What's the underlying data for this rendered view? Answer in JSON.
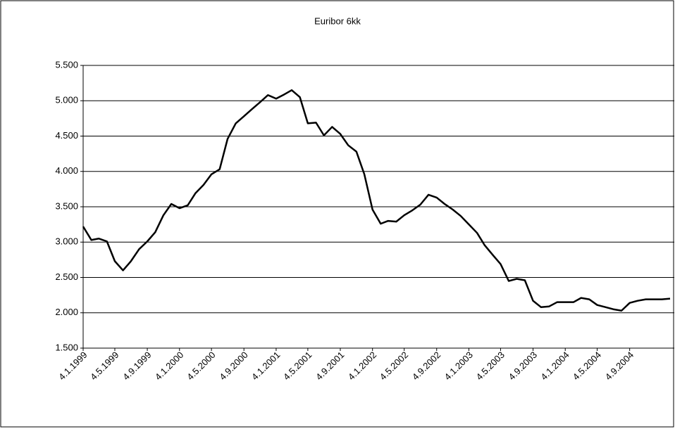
{
  "chart_data": {
    "type": "line",
    "title": "Euribor 6kk",
    "x": [
      "4.1.1999",
      "4.2.1999",
      "4.3.1999",
      "4.4.1999",
      "4.5.1999",
      "4.6.1999",
      "4.7.1999",
      "4.8.1999",
      "4.9.1999",
      "4.10.1999",
      "4.11.1999",
      "4.12.1999",
      "4.1.2000",
      "4.2.2000",
      "4.3.2000",
      "4.4.2000",
      "4.5.2000",
      "4.6.2000",
      "4.7.2000",
      "4.8.2000",
      "4.9.2000",
      "4.10.2000",
      "4.11.2000",
      "4.12.2000",
      "4.1.2001",
      "4.2.2001",
      "4.3.2001",
      "4.4.2001",
      "4.5.2001",
      "4.6.2001",
      "4.7.2001",
      "4.8.2001",
      "4.9.2001",
      "4.10.2001",
      "4.11.2001",
      "4.12.2001",
      "4.1.2002",
      "4.2.2002",
      "4.3.2002",
      "4.4.2002",
      "4.5.2002",
      "4.6.2002",
      "4.7.2002",
      "4.8.2002",
      "4.9.2002",
      "4.10.2002",
      "4.11.2002",
      "4.12.2002",
      "4.1.2003",
      "4.2.2003",
      "4.3.2003",
      "4.4.2003",
      "4.5.2003",
      "4.6.2003",
      "4.7.2003",
      "4.8.2003",
      "4.9.2003",
      "4.10.2003",
      "4.11.2003",
      "4.12.2003",
      "4.1.2004",
      "4.2.2004",
      "4.3.2004",
      "4.4.2004",
      "4.5.2004",
      "4.6.2004",
      "4.7.2004",
      "4.8.2004",
      "4.9.2004",
      "4.10.2004",
      "4.11.2004",
      "4.12.2004",
      "4.1.2005",
      "4.2.2005"
    ],
    "series": [
      {
        "name": "Euribor 6kk",
        "color": "#000000",
        "values": [
          3.22,
          3.03,
          3.05,
          3.01,
          2.73,
          2.6,
          2.73,
          2.9,
          3.01,
          3.14,
          3.38,
          3.54,
          3.48,
          3.52,
          3.69,
          3.81,
          3.96,
          4.03,
          4.46,
          4.68,
          4.78,
          4.88,
          4.98,
          5.08,
          5.03,
          5.09,
          5.15,
          5.05,
          4.68,
          4.69,
          4.51,
          4.63,
          4.53,
          4.37,
          4.28,
          3.96,
          3.46,
          3.26,
          3.3,
          3.29,
          3.38,
          3.45,
          3.53,
          3.67,
          3.63,
          3.54,
          3.46,
          3.37,
          3.25,
          3.13,
          2.96,
          2.82,
          2.69,
          2.45,
          2.48,
          2.46,
          2.17,
          2.08,
          2.09,
          2.15,
          2.15,
          2.15,
          2.21,
          2.19,
          2.11,
          2.08,
          2.05,
          2.03,
          2.14,
          2.17,
          2.19,
          2.19,
          2.19,
          2.2
        ]
      }
    ],
    "ylim": [
      1.5,
      5.5
    ],
    "yticks": [
      {
        "value": 1.5,
        "label": "1.500"
      },
      {
        "value": 2,
        "label": "2.000"
      },
      {
        "value": 2.5,
        "label": "2.500"
      },
      {
        "value": 3,
        "label": "3.000"
      },
      {
        "value": 3.5,
        "label": "3.500"
      },
      {
        "value": 4,
        "label": "4.000"
      },
      {
        "value": 4.5,
        "label": "4.500"
      },
      {
        "value": 5,
        "label": "5.000"
      },
      {
        "value": 5.5,
        "label": "5.500"
      }
    ],
    "xticks": [
      "4.1.1999",
      "4.5.1999",
      "4.9.1999",
      "4.1.2000",
      "4.5.2000",
      "4.9.2000",
      "4.1.2001",
      "4.5.2001",
      "4.9.2001",
      "4.1.2002",
      "4.5.2002",
      "4.9.2002",
      "4.1.2003",
      "4.5.2003",
      "4.9.2003",
      "4.1.2004",
      "4.5.2004",
      "4.9.2004"
    ],
    "grid": true
  }
}
